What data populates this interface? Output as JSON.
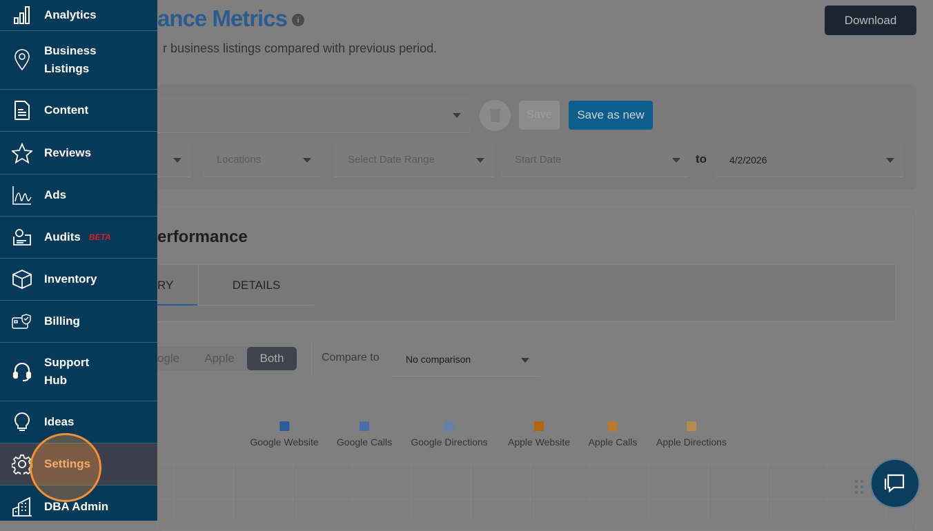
{
  "sidebar": {
    "items": [
      {
        "label": "Analytics",
        "icon": "bar-chart-icon"
      },
      {
        "label": "Business Listings",
        "icon": "map-pin-icon"
      },
      {
        "label": "Content",
        "icon": "document-icon"
      },
      {
        "label": "Reviews",
        "icon": "star-icon"
      },
      {
        "label": "Ads",
        "icon": "line-chart-icon"
      },
      {
        "label": "Audits",
        "icon": "audit-icon",
        "badge": "BETA"
      },
      {
        "label": "Inventory",
        "icon": "box-icon"
      },
      {
        "label": "Billing",
        "icon": "credit-card-shield-icon"
      },
      {
        "label": "Support Hub",
        "icon": "headset-icon"
      },
      {
        "label": "Ideas",
        "icon": "lightbulb-icon"
      },
      {
        "label": "Settings",
        "icon": "gear-icon",
        "active": true
      },
      {
        "label": "DBA Admin",
        "icon": "building-icon"
      }
    ]
  },
  "header": {
    "title": "ance Metrics",
    "subtitle": "r business listings compared with previous period.",
    "download": "Download"
  },
  "filters": {
    "save": "Save",
    "save_as_new": "Save as new",
    "locations": "Locations",
    "date_range": "Select Date Range",
    "start_date": "Start Date",
    "to": "to",
    "end_date": "4/2/2026"
  },
  "performance": {
    "title": "erformance",
    "tabs": [
      "RY",
      "DETAILS"
    ],
    "toggle": [
      "ogle",
      "Apple",
      "Both"
    ],
    "compare_label": "Compare to",
    "compare_value": "No comparison"
  },
  "legend": [
    {
      "label": "Google Website",
      "color": "#2d5a9a"
    },
    {
      "label": "Google Calls",
      "color": "#4a6fa8"
    },
    {
      "label": "Google Directions",
      "color": "#6480ad"
    },
    {
      "label": "Apple Website",
      "color": "#b0650f"
    },
    {
      "label": "Apple Calls",
      "color": "#b57a2a"
    },
    {
      "label": "Apple Directions",
      "color": "#b58a4a"
    }
  ],
  "colors": {
    "sidebar": "#073a58",
    "accent": "#0e5e8c",
    "highlight": "#f0903a"
  }
}
